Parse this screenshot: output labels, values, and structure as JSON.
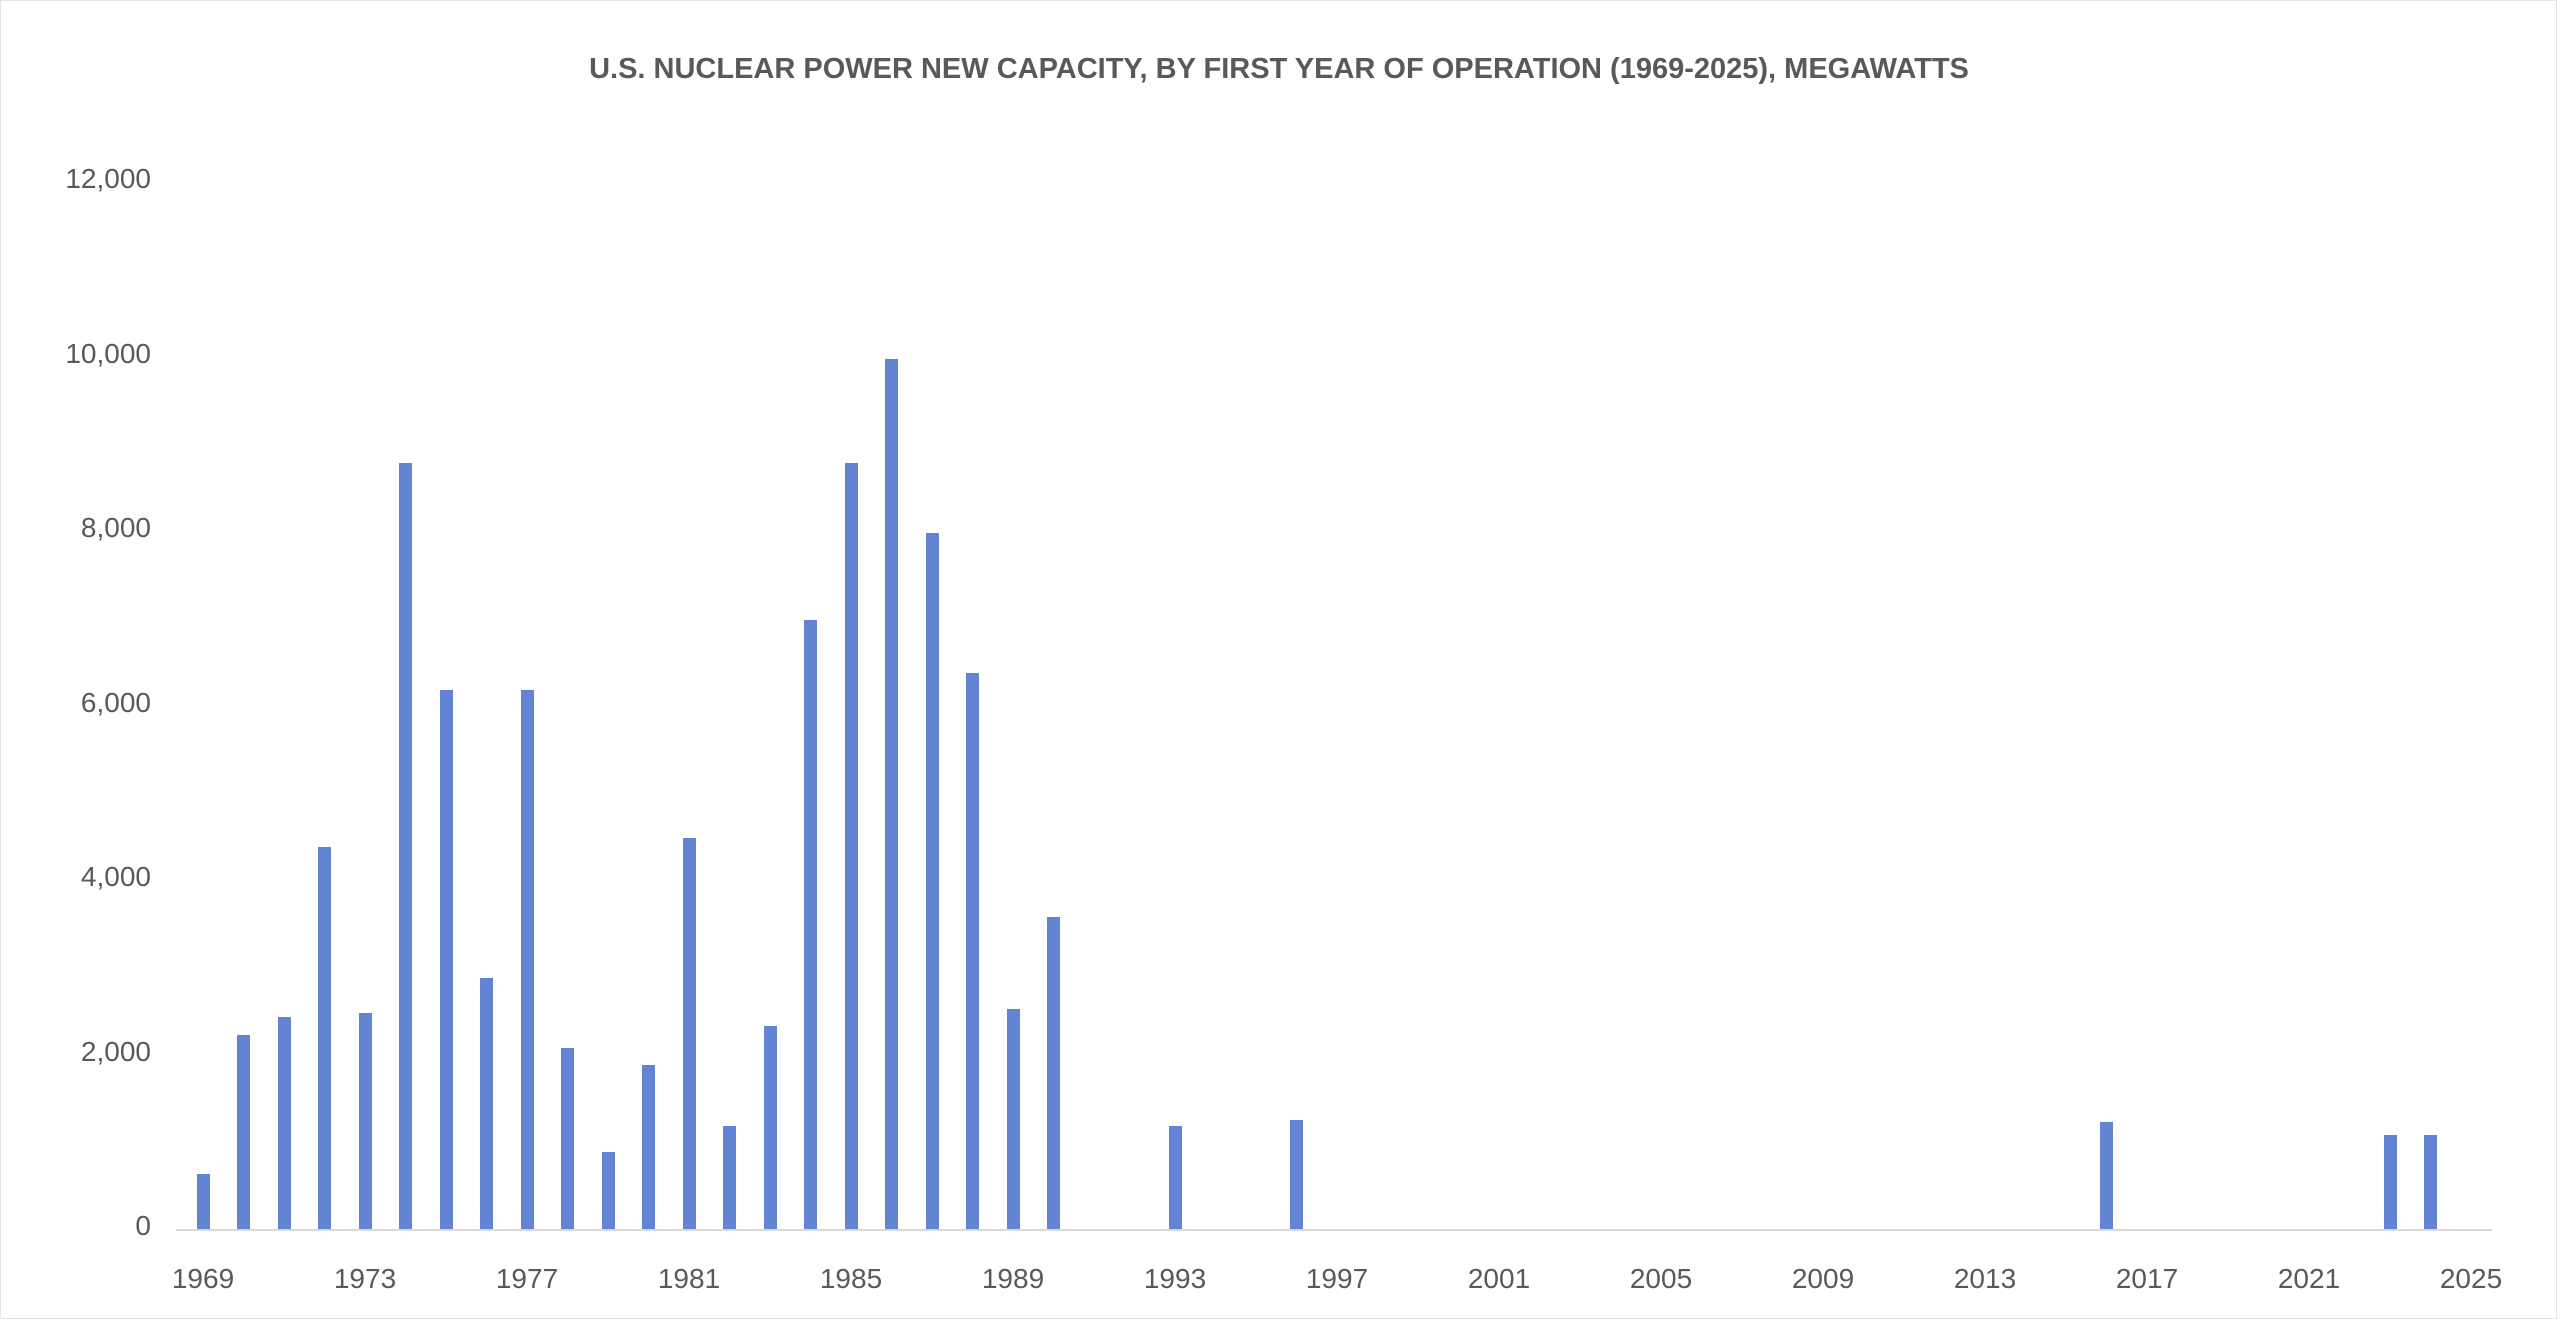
{
  "frame": {
    "background": "#ffffff",
    "border_color": "#e2e2e8"
  },
  "chart_data": {
    "type": "bar",
    "title": "U.S. NUCLEAR POWER NEW CAPACITY, BY FIRST YEAR OF OPERATION (1969-2025), MEGAWATTS",
    "xlabel": "",
    "ylabel": "",
    "units": "megawatts",
    "x": [
      1969,
      1970,
      1971,
      1972,
      1973,
      1974,
      1975,
      1976,
      1977,
      1978,
      1979,
      1980,
      1981,
      1982,
      1983,
      1984,
      1985,
      1986,
      1987,
      1988,
      1989,
      1990,
      1991,
      1992,
      1993,
      1994,
      1995,
      1996,
      1997,
      1998,
      1999,
      2000,
      2001,
      2002,
      2003,
      2004,
      2005,
      2006,
      2007,
      2008,
      2009,
      2010,
      2011,
      2012,
      2013,
      2014,
      2015,
      2016,
      2017,
      2018,
      2019,
      2020,
      2021,
      2022,
      2023,
      2024,
      2025
    ],
    "values": [
      650,
      2250,
      2450,
      4400,
      2500,
      8800,
      6200,
      2900,
      6200,
      2100,
      900,
      1900,
      4500,
      1200,
      2350,
      7000,
      8800,
      10000,
      8000,
      6400,
      2550,
      3600,
      0,
      0,
      1200,
      0,
      0,
      1270,
      0,
      0,
      0,
      0,
      0,
      0,
      0,
      0,
      0,
      0,
      0,
      0,
      0,
      0,
      0,
      0,
      0,
      0,
      0,
      1250,
      0,
      0,
      0,
      0,
      0,
      0,
      1100,
      1100,
      0
    ],
    "x_tick_years": [
      1969,
      1973,
      1977,
      1981,
      1985,
      1989,
      1993,
      1997,
      2001,
      2005,
      2009,
      2013,
      2017,
      2021,
      2025
    ],
    "x_tick_labels": [
      "1969",
      "1973",
      "1977",
      "1981",
      "1985",
      "1989",
      "1993",
      "1997",
      "2001",
      "2005",
      "2009",
      "2013",
      "2017",
      "2021",
      "2025"
    ],
    "y_tick_values": [
      0,
      2000,
      4000,
      6000,
      8000,
      10000,
      12000
    ],
    "y_tick_labels": [
      "0",
      "2,000",
      "4,000",
      "6,000",
      "8,000",
      "10,000",
      "12,000"
    ],
    "ylim": [
      0,
      12000
    ],
    "grid": "off",
    "legend": "none",
    "bar_color": "#6384d5",
    "axis_line_color": "#d9d9d9",
    "text_color": "#595959"
  }
}
